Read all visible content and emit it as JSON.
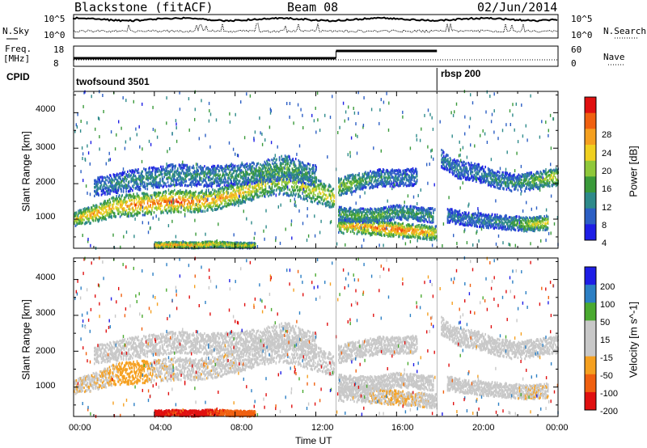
{
  "header": {
    "title": "Blackstone (fitACF)",
    "beam": "Beam 08",
    "date": "02/Jun/2014"
  },
  "noise_panel": {
    "left_label": "N.Sky",
    "right_label": "N.Search",
    "y_top": "10^5",
    "y_bottom": "10^0",
    "right_top": "10^5",
    "right_bottom": "10^0"
  },
  "freq_panel": {
    "left_label_1": "Freq.",
    "left_label_2": "[MHz]",
    "y_top": "18",
    "y_bottom": "8",
    "right_label": "Nave",
    "right_top": "60",
    "right_bottom": "0"
  },
  "cpid_panel": {
    "label": "CPID",
    "modes": [
      {
        "name": "twofsound 3501",
        "start_hour": 0
      },
      {
        "name": "rbsp 200",
        "start_hour": 18
      }
    ]
  },
  "x_axis": {
    "label": "Time UT",
    "ticks": [
      "00:00",
      "04:00",
      "08:00",
      "12:00",
      "16:00",
      "20:00",
      "00:00"
    ]
  },
  "power_panel": {
    "ylabel": "Slant Range [km]",
    "yticks": [
      "1000",
      "2000",
      "3000",
      "4000"
    ],
    "colorbar_label": "Power [dB]",
    "colorbar_ticks": [
      "4",
      "8",
      "12",
      "16",
      "20",
      "24",
      "28"
    ]
  },
  "velocity_panel": {
    "ylabel": "Slant Range [km]",
    "yticks": [
      "1000",
      "2000",
      "3000",
      "4000"
    ],
    "colorbar_label": "Velocity [m s^-1]",
    "colorbar_ticks": [
      "200",
      "100",
      "50",
      "15",
      "-15",
      "-50",
      "-100",
      "-200"
    ]
  },
  "chart_data": {
    "type": "heatmap",
    "title": "Blackstone (fitACF)",
    "xlabel": "Time UT",
    "ylabel": "Slant Range [km]",
    "xlim": [
      0,
      24
    ],
    "ylim": [
      180,
      4600
    ],
    "grid": false,
    "power_scale": {
      "range_db": [
        0,
        32
      ],
      "colors": [
        "#1e1ee6",
        "#2c5fc4",
        "#2e8a8a",
        "#3a9a3a",
        "#8fc83a",
        "#f0d020",
        "#f5a020",
        "#f06010",
        "#e01010"
      ]
    },
    "velocity_scale": {
      "bins": [
        -200,
        -100,
        -50,
        -15,
        15,
        50,
        100,
        200
      ],
      "colors": [
        "#e01010",
        "#f06010",
        "#f5a020",
        "#c8c8c8",
        "#c8c8c8",
        "#4aaa30",
        "#2c7fc4",
        "#1e1ee6"
      ]
    },
    "scatter_bands": [
      {
        "name": "main",
        "x": [
          0,
          1,
          2,
          3,
          4,
          5,
          6,
          7,
          8,
          9,
          10,
          11,
          12.9
        ],
        "center_km": [
          1000,
          1150,
          1350,
          1400,
          1450,
          1500,
          1480,
          1550,
          1700,
          1900,
          2100,
          2000,
          1600
        ],
        "width_km": [
          200,
          250,
          300,
          320,
          300,
          320,
          300,
          300,
          300,
          350,
          400,
          400,
          300
        ],
        "peak_db": [
          20,
          24,
          22,
          26,
          26,
          28,
          26,
          24,
          22,
          20,
          18,
          18,
          20
        ],
        "velocity": [
          -10,
          -10,
          -20,
          -40,
          -10,
          -5,
          -5,
          -5,
          -5,
          10,
          40,
          5,
          0
        ]
      },
      {
        "name": "upper",
        "x": [
          1,
          3,
          5,
          7,
          9,
          10.5,
          12
        ],
        "center_km": [
          1900,
          2100,
          2250,
          2200,
          2300,
          2450,
          2200
        ],
        "width_km": [
          250,
          300,
          300,
          300,
          300,
          350,
          300
        ],
        "peak_db": [
          8,
          10,
          10,
          10,
          12,
          14,
          10
        ],
        "velocity": [
          0,
          0,
          0,
          0,
          5,
          40,
          0
        ]
      },
      {
        "name": "late_lower",
        "x": [
          13.1,
          14,
          15,
          16,
          17,
          18
        ],
        "center_km": [
          800,
          800,
          750,
          700,
          650,
          600
        ],
        "width_km": [
          200,
          220,
          220,
          200,
          200,
          200
        ],
        "peak_db": [
          20,
          24,
          26,
          28,
          26,
          20
        ],
        "velocity": [
          0,
          0,
          -10,
          -15,
          -10,
          0
        ]
      },
      {
        "name": "late_mid",
        "x": [
          13.1,
          14,
          15,
          16,
          17,
          17.8
        ],
        "center_km": [
          1150,
          1100,
          1100,
          1200,
          1150,
          1100
        ],
        "width_km": [
          200,
          200,
          200,
          200,
          200,
          200
        ],
        "peak_db": [
          12,
          14,
          14,
          12,
          12,
          10
        ],
        "velocity": [
          0,
          0,
          0,
          0,
          0,
          0
        ]
      },
      {
        "name": "late_upper",
        "x": [
          13.1,
          14,
          15,
          16,
          17
        ],
        "center_km": [
          1900,
          2050,
          2150,
          2150,
          2200
        ],
        "width_km": [
          250,
          250,
          250,
          250,
          250
        ],
        "peak_db": [
          18,
          14,
          10,
          8,
          8
        ],
        "velocity": [
          0,
          0,
          0,
          0,
          0
        ]
      },
      {
        "name": "evening_upper",
        "x": [
          18.2,
          19,
          20,
          21,
          22,
          23,
          24
        ],
        "center_km": [
          2700,
          2400,
          2300,
          2100,
          2000,
          2100,
          2200
        ],
        "width_km": [
          250,
          250,
          250,
          250,
          250,
          250,
          250
        ],
        "peak_db": [
          8,
          8,
          8,
          10,
          10,
          16,
          20
        ],
        "velocity": [
          0,
          0,
          0,
          0,
          0,
          0,
          0
        ]
      },
      {
        "name": "evening_lower",
        "x": [
          18.5,
          19.5,
          20.5,
          21.5,
          22.5,
          23.5
        ],
        "center_km": [
          1100,
          1000,
          950,
          900,
          850,
          900
        ],
        "width_km": [
          200,
          200,
          200,
          200,
          200,
          200
        ],
        "peak_db": [
          8,
          8,
          8,
          10,
          18,
          20
        ],
        "velocity": [
          0,
          0,
          0,
          0,
          -10,
          -10
        ]
      },
      {
        "name": "near_range",
        "x": [
          4,
          5,
          6,
          7,
          8,
          9
        ],
        "center_km": [
          260,
          280,
          260,
          300,
          260,
          250
        ],
        "width_km": [
          80,
          80,
          80,
          80,
          80,
          80
        ],
        "peak_db": [
          24,
          26,
          24,
          22,
          20,
          18
        ],
        "velocity": [
          -120,
          -100,
          -120,
          -100,
          -80,
          -60
        ]
      }
    ]
  }
}
